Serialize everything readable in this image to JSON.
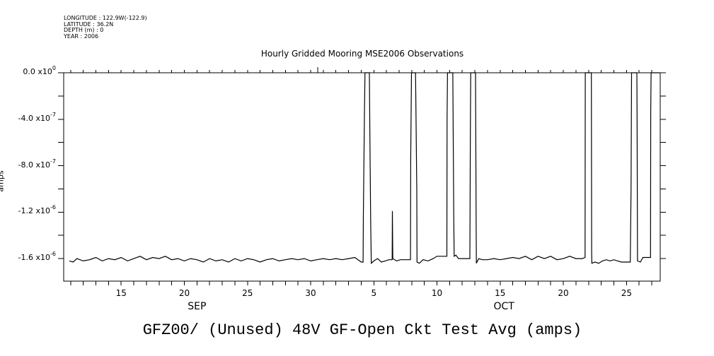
{
  "header": {
    "lines": [
      "LONGITUDE : 122.9W(-122.9)",
      "LATITUDE : 36.2N",
      "DEPTH (m) : 0",
      "YEAR : 2006"
    ]
  },
  "chart_data": {
    "type": "line",
    "title": "Hourly Gridded Mooring MSE2006 Observations",
    "footer_title": "GFZ00/ (Unused) 48V GF-Open Ckt Test Avg (amps)",
    "ylabel": "amps",
    "xlabel": "",
    "x_units": "day of Sep 2006 (day 31 = Oct 1)",
    "value_multiplier": 1e-06,
    "xlim": [
      10.45,
      57.67
    ],
    "ylim": [
      -1.794,
      0
    ],
    "grid": false,
    "y_ticks": [
      {
        "value": 0,
        "mantissa": "0.0 x10",
        "exp": "0"
      },
      {
        "value": -0.4,
        "mantissa": "-4.0 x10",
        "exp": "-7"
      },
      {
        "value": -0.8,
        "mantissa": "-8.0 x10",
        "exp": "-7"
      },
      {
        "value": -1.2,
        "mantissa": "-1.2 x10",
        "exp": "-6"
      },
      {
        "value": -1.6,
        "mantissa": "-1.6 x10",
        "exp": "-6"
      }
    ],
    "y_minor_ticks": [
      -0.2,
      -0.6,
      -1.0,
      -1.4
    ],
    "x_ticks": [
      {
        "day": 15,
        "label": "15"
      },
      {
        "day": 20,
        "label": "20"
      },
      {
        "day": 25,
        "label": "25"
      },
      {
        "day": 30,
        "label": "30"
      },
      {
        "day": 35,
        "label": "5"
      },
      {
        "day": 40,
        "label": "10"
      },
      {
        "day": 45,
        "label": "15"
      },
      {
        "day": 50,
        "label": "20"
      },
      {
        "day": 55,
        "label": "25"
      }
    ],
    "months": [
      {
        "day": 21,
        "label": "SEP"
      },
      {
        "day": 45.3,
        "label": "OCT"
      }
    ],
    "series": [
      {
        "name": "GFZ00",
        "points": [
          [
            10.9,
            -1.62
          ],
          [
            11.2,
            -1.63
          ],
          [
            11.5,
            -1.6
          ],
          [
            12,
            -1.62
          ],
          [
            12.5,
            -1.61
          ],
          [
            13,
            -1.59
          ],
          [
            13.5,
            -1.62
          ],
          [
            14,
            -1.6
          ],
          [
            14.5,
            -1.61
          ],
          [
            15,
            -1.59
          ],
          [
            15.5,
            -1.62
          ],
          [
            16,
            -1.6
          ],
          [
            16.5,
            -1.58
          ],
          [
            17,
            -1.61
          ],
          [
            17.5,
            -1.59
          ],
          [
            18,
            -1.6
          ],
          [
            18.5,
            -1.58
          ],
          [
            19,
            -1.61
          ],
          [
            19.5,
            -1.6
          ],
          [
            20,
            -1.62
          ],
          [
            20.5,
            -1.6
          ],
          [
            21,
            -1.61
          ],
          [
            21.5,
            -1.63
          ],
          [
            22,
            -1.6
          ],
          [
            22.5,
            -1.62
          ],
          [
            23,
            -1.61
          ],
          [
            23.5,
            -1.63
          ],
          [
            24,
            -1.6
          ],
          [
            24.5,
            -1.62
          ],
          [
            25,
            -1.6
          ],
          [
            25.5,
            -1.61
          ],
          [
            26,
            -1.63
          ],
          [
            26.5,
            -1.61
          ],
          [
            27,
            -1.6
          ],
          [
            27.5,
            -1.62
          ],
          [
            28,
            -1.61
          ],
          [
            28.5,
            -1.6
          ],
          [
            29,
            -1.61
          ],
          [
            29.5,
            -1.6
          ],
          [
            30,
            -1.62
          ],
          [
            30.5,
            -1.61
          ],
          [
            31,
            -1.6
          ],
          [
            31.5,
            -1.61
          ],
          [
            32,
            -1.6
          ],
          [
            32.5,
            -1.61
          ],
          [
            33,
            -1.6
          ],
          [
            33.5,
            -1.59
          ],
          [
            34,
            -1.63
          ],
          [
            34.15,
            -1.63
          ],
          [
            34.17,
            -1.22
          ],
          [
            34.25,
            -0.41
          ],
          [
            34.3,
            0
          ],
          [
            34.65,
            0
          ],
          [
            34.68,
            -0.46
          ],
          [
            34.75,
            -1.27
          ],
          [
            34.8,
            -1.64
          ],
          [
            35,
            -1.62
          ],
          [
            35.3,
            -1.6
          ],
          [
            35.6,
            -1.63
          ],
          [
            35.9,
            -1.62
          ],
          [
            36.2,
            -1.61
          ],
          [
            36.45,
            -1.61
          ],
          [
            36.47,
            -1.19
          ],
          [
            36.5,
            -1.6
          ],
          [
            36.8,
            -1.62
          ],
          [
            37.1,
            -1.61
          ],
          [
            37.6,
            -1.61
          ],
          [
            37.9,
            -1.61
          ],
          [
            37.92,
            -0.74
          ],
          [
            37.98,
            0
          ],
          [
            38.3,
            0
          ],
          [
            38.32,
            -0.21
          ],
          [
            38.4,
            -1.02
          ],
          [
            38.42,
            -1.63
          ],
          [
            38.6,
            -1.64
          ],
          [
            38.9,
            -1.61
          ],
          [
            39.3,
            -1.62
          ],
          [
            39.7,
            -1.6
          ],
          [
            40.0,
            -1.58
          ],
          [
            40.35,
            -1.58
          ],
          [
            40.78,
            -1.58
          ],
          [
            40.8,
            -0.39
          ],
          [
            40.83,
            0
          ],
          [
            41.25,
            0
          ],
          [
            41.28,
            -0.49
          ],
          [
            41.33,
            -1.28
          ],
          [
            41.36,
            -1.58
          ],
          [
            41.5,
            -1.57
          ],
          [
            41.7,
            -1.6
          ],
          [
            42.0,
            -1.6
          ],
          [
            42.6,
            -1.6
          ],
          [
            42.64,
            -0.51
          ],
          [
            42.67,
            0
          ],
          [
            43.05,
            0
          ],
          [
            43.1,
            -1.33
          ],
          [
            43.12,
            -1.64
          ],
          [
            43.3,
            -1.6
          ],
          [
            43.6,
            -1.61
          ],
          [
            44,
            -1.61
          ],
          [
            44.5,
            -1.6
          ],
          [
            45,
            -1.61
          ],
          [
            45.5,
            -1.6
          ],
          [
            46,
            -1.59
          ],
          [
            46.5,
            -1.6
          ],
          [
            47,
            -1.58
          ],
          [
            47.5,
            -1.61
          ],
          [
            48,
            -1.58
          ],
          [
            48.5,
            -1.6
          ],
          [
            49,
            -1.58
          ],
          [
            49.5,
            -1.61
          ],
          [
            50,
            -1.6
          ],
          [
            50.5,
            -1.58
          ],
          [
            51,
            -1.6
          ],
          [
            51.5,
            -1.6
          ],
          [
            51.72,
            -1.59
          ],
          [
            51.74,
            0
          ],
          [
            52.22,
            0
          ],
          [
            52.24,
            -1.55
          ],
          [
            52.26,
            -1.64
          ],
          [
            52.5,
            -1.63
          ],
          [
            52.8,
            -1.64
          ],
          [
            53.1,
            -1.62
          ],
          [
            53.4,
            -1.61
          ],
          [
            53.7,
            -1.62
          ],
          [
            54,
            -1.61
          ],
          [
            54.3,
            -1.62
          ],
          [
            54.6,
            -1.63
          ],
          [
            55.3,
            -1.63
          ],
          [
            55.36,
            -1.0
          ],
          [
            55.4,
            0
          ],
          [
            55.82,
            0
          ],
          [
            55.84,
            -0.4
          ],
          [
            55.87,
            -1.62
          ],
          [
            56.1,
            -1.63
          ],
          [
            56.3,
            -1.59
          ],
          [
            56.9,
            -1.59
          ],
          [
            56.92,
            -0.33
          ],
          [
            56.95,
            0
          ],
          [
            57.6,
            0
          ]
        ]
      }
    ]
  }
}
